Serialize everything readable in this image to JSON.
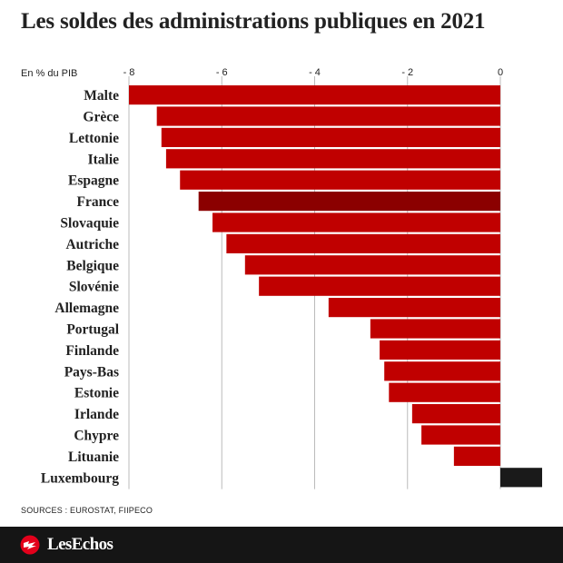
{
  "title": "Les soldes des administrations publiques en 2021",
  "sources": "SOURCES : EUROSTAT, FIIPECO",
  "brand": "LesEchos",
  "colors": {
    "bar": "#c00000",
    "highlight": "#8b0000",
    "positive": "#1a1a1a"
  },
  "chart_data": {
    "type": "bar",
    "orientation": "horizontal",
    "unit_label": "En % du PIB",
    "ticks": [
      -8,
      -6,
      -4,
      -2,
      0
    ],
    "xlim": [
      -8,
      0.9
    ],
    "grid": true,
    "highlight": "France",
    "categories": [
      "Malte",
      "Grèce",
      "Lettonie",
      "Italie",
      "Espagne",
      "France",
      "Slovaquie",
      "Autriche",
      "Belgique",
      "Slovénie",
      "Allemagne",
      "Portugal",
      "Finlande",
      "Pays-Bas",
      "Estonie",
      "Irlande",
      "Chypre",
      "Lituanie",
      "Luxembourg"
    ],
    "values": [
      -8.0,
      -7.4,
      -7.3,
      -7.2,
      -6.9,
      -6.5,
      -6.2,
      -5.9,
      -5.5,
      -5.2,
      -3.7,
      -2.8,
      -2.6,
      -2.5,
      -2.4,
      -1.9,
      -1.7,
      -1.0,
      0.9
    ]
  }
}
